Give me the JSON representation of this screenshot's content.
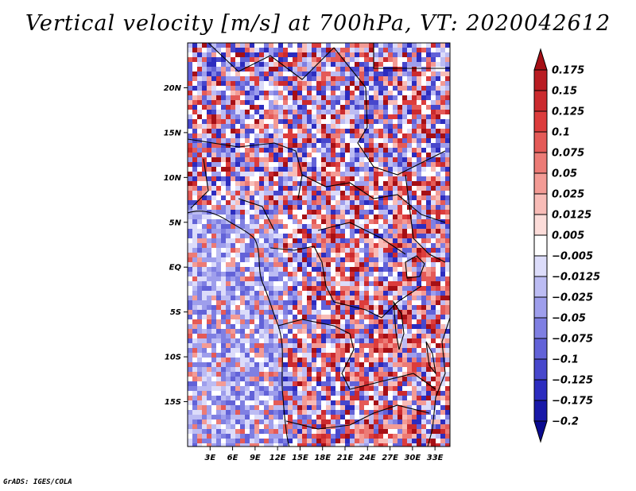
{
  "title": "Vertical velocity [m/s] at 700hPa, VT: 2020042612",
  "footer": "GrADS: IGES/COLA",
  "map": {
    "lat_range": [
      -20,
      25
    ],
    "lon_range": [
      0,
      35
    ],
    "lat_ticks": [
      "20N",
      "15N",
      "10N",
      "5N",
      "EQ",
      "5S",
      "10S",
      "15S"
    ],
    "lon_ticks": [
      "3E",
      "6E",
      "9E",
      "12E",
      "15E",
      "18E",
      "21E",
      "24E",
      "27E",
      "30E",
      "33E"
    ]
  },
  "colorbar": {
    "labels": [
      "0.175",
      "0.15",
      "0.125",
      "0.1",
      "0.075",
      "0.05",
      "0.025",
      "0.0125",
      "0.005",
      "−0.005",
      "−0.0125",
      "−0.025",
      "−0.05",
      "−0.075",
      "−0.1",
      "−0.125",
      "−0.175",
      "−0.2"
    ],
    "colors": [
      "#a50f15",
      "#b91c22",
      "#cb2a2e",
      "#dc3c3c",
      "#e45a57",
      "#ec7b76",
      "#f39b95",
      "#f8bcb7",
      "#fcdcd9",
      "#ffffff",
      "#dcdcfa",
      "#bcbcf3",
      "#9e9eec",
      "#7f7fe2",
      "#6262d8",
      "#4747cc",
      "#2c2cbf",
      "#1818a8",
      "#0a0a90"
    ]
  }
}
